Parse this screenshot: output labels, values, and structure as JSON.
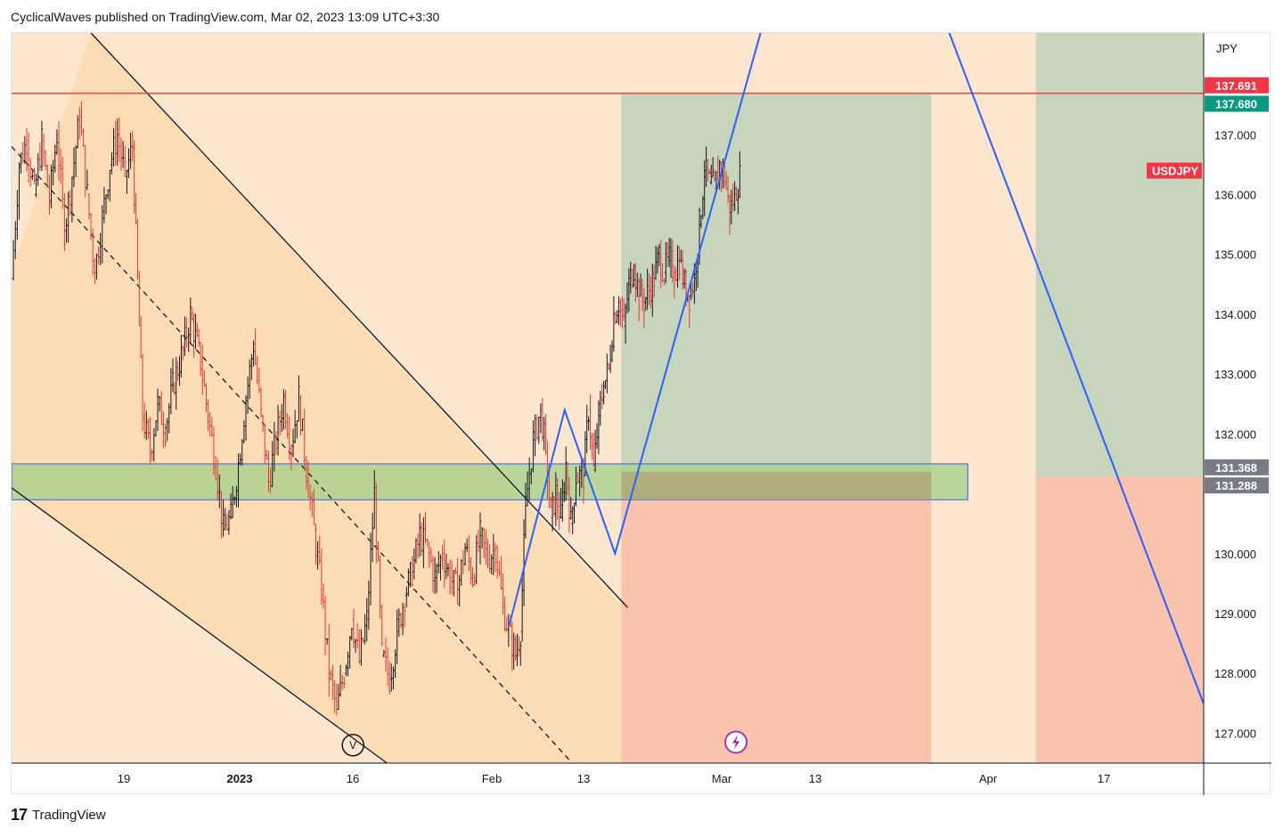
{
  "header": {
    "published_line": "CyclicalWaves published on TradingView.com, Mar 02, 2023 13:09 UTC+3:30"
  },
  "footer": {
    "logo_glyph": "17",
    "brand": "TradingView"
  },
  "markers": {
    "wave_label": "V",
    "lightning_icon": "lightning-icon"
  },
  "colors": {
    "background": "#fce6cd",
    "channel_fill": "#fbd9b0",
    "profit_zone": "#c8d5bd",
    "loss_zone": "#f9c3ad",
    "support_band": "#a5cf8a",
    "support_band_border": "#2962ff",
    "resistance_line": "#e53935",
    "wave_line": "#2962ff",
    "candle_up": "#131722",
    "candle_down": "#e53935"
  },
  "chart_data": {
    "type": "candlestick",
    "symbol": "USDJPY",
    "currency": "JPY",
    "y_axis": {
      "min": 126.5,
      "max": 138.7,
      "ticks": [
        "137.000",
        "136.000",
        "135.000",
        "134.000",
        "133.000",
        "132.000",
        "130.000",
        "129.000",
        "128.000",
        "127.000"
      ]
    },
    "x_axis_labels": [
      "19",
      "2023",
      "16",
      "Feb",
      "13",
      "Mar",
      "13",
      "Apr",
      "17"
    ],
    "price_labels": [
      {
        "text": "137.691",
        "value": 137.691,
        "color": "#f23645"
      },
      {
        "text": "137.680",
        "value": 137.68,
        "color": "#089981"
      },
      {
        "text": "131.368",
        "value": 131.368,
        "color": "#787b86"
      },
      {
        "text": "131.288",
        "value": 131.288,
        "color": "#787b86"
      }
    ],
    "symbol_label": {
      "text": "USDJPY",
      "value": 136.4,
      "color": "#f23645"
    },
    "resistance_level": 137.691,
    "support_band": {
      "low": 130.9,
      "high": 131.5
    },
    "price_path": [
      [
        0,
        134.6
      ],
      [
        6,
        136.5
      ],
      [
        12,
        136.9
      ],
      [
        18,
        136.0
      ],
      [
        24,
        136.9
      ],
      [
        30,
        135.9
      ],
      [
        36,
        137.0
      ],
      [
        42,
        135.4
      ],
      [
        48,
        136.3
      ],
      [
        54,
        137.3
      ],
      [
        60,
        136.0
      ],
      [
        66,
        134.7
      ],
      [
        72,
        135.6
      ],
      [
        78,
        136.5
      ],
      [
        84,
        137.0
      ],
      [
        90,
        136.3
      ],
      [
        96,
        136.8
      ],
      [
        104,
        132.3
      ],
      [
        110,
        131.7
      ],
      [
        116,
        132.5
      ],
      [
        122,
        132.1
      ],
      [
        128,
        132.8
      ],
      [
        136,
        133.4
      ],
      [
        142,
        134.0
      ],
      [
        150,
        133.2
      ],
      [
        156,
        132.3
      ],
      [
        162,
        131.5
      ],
      [
        168,
        130.4
      ],
      [
        174,
        130.6
      ],
      [
        180,
        131.5
      ],
      [
        186,
        132.6
      ],
      [
        192,
        133.5
      ],
      [
        198,
        132.3
      ],
      [
        204,
        131.2
      ],
      [
        210,
        131.9
      ],
      [
        216,
        132.6
      ],
      [
        222,
        131.8
      ],
      [
        228,
        132.6
      ],
      [
        234,
        131.4
      ],
      [
        240,
        130.4
      ],
      [
        246,
        129.4
      ],
      [
        252,
        128.0
      ],
      [
        258,
        127.4
      ],
      [
        264,
        128.0
      ],
      [
        270,
        128.9
      ],
      [
        276,
        128.2
      ],
      [
        282,
        128.9
      ],
      [
        288,
        131.0
      ],
      [
        294,
        128.3
      ],
      [
        300,
        127.9
      ],
      [
        306,
        128.7
      ],
      [
        312,
        129.3
      ],
      [
        318,
        129.7
      ],
      [
        324,
        130.3
      ],
      [
        330,
        130.1
      ],
      [
        336,
        129.6
      ],
      [
        342,
        130.0
      ],
      [
        348,
        129.6
      ],
      [
        354,
        129.4
      ],
      [
        360,
        130.1
      ],
      [
        366,
        129.6
      ],
      [
        372,
        130.3
      ],
      [
        378,
        129.9
      ],
      [
        384,
        130.1
      ],
      [
        390,
        129.1
      ],
      [
        396,
        128.6
      ],
      [
        400,
        128.3
      ],
      [
        404,
        128.7
      ],
      [
        408,
        130.8
      ],
      [
        414,
        131.9
      ],
      [
        420,
        132.4
      ],
      [
        424,
        131.7
      ],
      [
        428,
        130.6
      ],
      [
        432,
        131.0
      ],
      [
        436,
        130.6
      ],
      [
        440,
        131.5
      ],
      [
        444,
        130.5
      ],
      [
        448,
        131.3
      ],
      [
        454,
        131.3
      ],
      [
        458,
        132.4
      ],
      [
        462,
        131.4
      ],
      [
        466,
        132.3
      ],
      [
        470,
        132.8
      ],
      [
        474,
        133.1
      ],
      [
        478,
        134.0
      ],
      [
        482,
        134.2
      ],
      [
        486,
        133.8
      ],
      [
        490,
        134.5
      ],
      [
        494,
        134.8
      ],
      [
        498,
        134.3
      ],
      [
        502,
        134.2
      ],
      [
        506,
        134.4
      ],
      [
        510,
        134.6
      ],
      [
        514,
        135.0
      ],
      [
        518,
        134.7
      ],
      [
        522,
        134.9
      ],
      [
        526,
        134.7
      ],
      [
        530,
        134.9
      ],
      [
        534,
        134.5
      ],
      [
        538,
        134.3
      ],
      [
        542,
        134.6
      ],
      [
        546,
        135.5
      ],
      [
        550,
        136.4
      ],
      [
        554,
        136.2
      ],
      [
        558,
        136.1
      ],
      [
        562,
        136.5
      ],
      [
        566,
        136.3
      ],
      [
        570,
        135.7
      ],
      [
        574,
        136.0
      ],
      [
        578,
        136.3
      ]
    ],
    "scale_note_px": {
      "x0": 14,
      "x_per_unit": 1.414
    }
  }
}
